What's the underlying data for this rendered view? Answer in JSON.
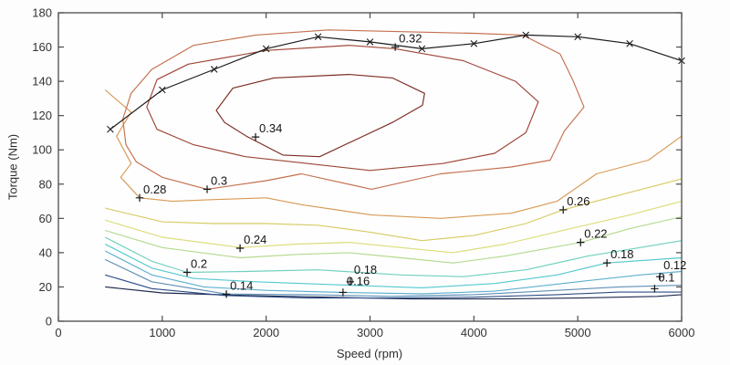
{
  "figure": {
    "background": "#fdfdfd",
    "plot_background": "#fefefe",
    "border_color": "#4a4a4a",
    "tick_text_color": "#333333",
    "contour_label_color": "#141414",
    "max_torque_color": "#1c1c1c"
  },
  "chart_data": {
    "type": "contour",
    "title": "",
    "xlabel": "Speed (rpm)",
    "ylabel": "Torque (Nm)",
    "xlim": [
      0,
      6000
    ],
    "ylim": [
      0,
      180
    ],
    "grid": false,
    "legend": "none",
    "xticks": {
      "values": [
        0,
        1000,
        2000,
        3000,
        4000,
        5000,
        6000
      ],
      "labels": [
        "0",
        "1000",
        "2000",
        "3000",
        "4000",
        "5000",
        "6000"
      ]
    },
    "yticks": {
      "values": [
        0,
        20,
        40,
        60,
        80,
        100,
        120,
        140,
        160,
        180
      ],
      "labels": [
        "0",
        "20",
        "40",
        "60",
        "80",
        "100",
        "120",
        "140",
        "160",
        "180"
      ]
    },
    "max_torque_curve": {
      "marker": "x",
      "points": [
        [
          500,
          112
        ],
        [
          1000,
          135
        ],
        [
          1500,
          147
        ],
        [
          2000,
          159
        ],
        [
          2500,
          166
        ],
        [
          3000,
          163
        ],
        [
          3500,
          159
        ],
        [
          4000,
          162
        ],
        [
          4500,
          167
        ],
        [
          5000,
          166
        ],
        [
          5500,
          162
        ],
        [
          6000,
          152
        ]
      ]
    },
    "contours": [
      {
        "level": 0.1,
        "color": "#1E2A4D",
        "closed": false,
        "points": [
          [
            450,
            20
          ],
          [
            1000,
            16.5
          ],
          [
            1800,
            15
          ],
          [
            2600,
            14
          ],
          [
            3400,
            13
          ],
          [
            4300,
            13
          ],
          [
            5000,
            13.5
          ],
          [
            5765,
            14.5
          ],
          [
            6000,
            15.5
          ]
        ]
      },
      {
        "level": 0.12,
        "color": "#2F4E87",
        "closed": false,
        "points": [
          [
            450,
            27
          ],
          [
            900,
            19
          ],
          [
            1600,
            15
          ],
          [
            2400,
            13.5
          ],
          [
            3200,
            13.5
          ],
          [
            4000,
            14
          ],
          [
            4800,
            15.5
          ],
          [
            5400,
            17
          ],
          [
            6000,
            17
          ]
        ]
      },
      {
        "level": 0.14,
        "color": "#5E8FB5",
        "closed": false,
        "points": [
          [
            450,
            36
          ],
          [
            900,
            23
          ],
          [
            1620,
            15.8
          ],
          [
            2400,
            15.5
          ],
          [
            3200,
            14.5
          ],
          [
            4000,
            15.5
          ],
          [
            4800,
            18
          ],
          [
            5400,
            20
          ],
          [
            6000,
            21
          ]
        ]
      },
      {
        "level": 0.16,
        "color": "#5FB0D0",
        "closed": false,
        "points": [
          [
            450,
            41
          ],
          [
            900,
            27
          ],
          [
            1400,
            20
          ],
          [
            2000,
            18
          ],
          [
            2740,
            16.8
          ],
          [
            3500,
            16
          ],
          [
            4200,
            17.5
          ],
          [
            5000,
            23
          ],
          [
            5600,
            27
          ],
          [
            6000,
            29
          ]
        ]
      },
      {
        "level": 0.18,
        "color": "#55C8D0",
        "closed": false,
        "points": [
          [
            450,
            45
          ],
          [
            900,
            31
          ],
          [
            1300,
            25
          ],
          [
            1900,
            23
          ],
          [
            2800,
            21
          ],
          [
            3500,
            19.5
          ],
          [
            4200,
            22
          ],
          [
            4800,
            27
          ],
          [
            5280,
            34
          ],
          [
            6000,
            37
          ]
        ]
      },
      {
        "level": 0.2,
        "color": "#6FD0BC",
        "closed": false,
        "points": [
          [
            450,
            49
          ],
          [
            900,
            35
          ],
          [
            1240,
            28.5
          ],
          [
            1800,
            29
          ],
          [
            2500,
            30
          ],
          [
            3300,
            27
          ],
          [
            3900,
            26
          ],
          [
            4500,
            30
          ],
          [
            5100,
            38
          ],
          [
            5600,
            43
          ],
          [
            6000,
            47
          ]
        ]
      },
      {
        "level": 0.22,
        "color": "#B5D98E",
        "closed": false,
        "points": [
          [
            450,
            53
          ],
          [
            1000,
            43
          ],
          [
            1750,
            37
          ],
          [
            2300,
            39
          ],
          [
            2800,
            40
          ],
          [
            3300,
            37
          ],
          [
            3800,
            34
          ],
          [
            4300,
            38
          ],
          [
            5030,
            46
          ],
          [
            5500,
            54
          ],
          [
            6000,
            61
          ]
        ]
      },
      {
        "level": 0.24,
        "color": "#DCDD7A",
        "closed": false,
        "points": [
          [
            450,
            59
          ],
          [
            1000,
            49
          ],
          [
            1750,
            43
          ],
          [
            2300,
            45
          ],
          [
            2800,
            46
          ],
          [
            3300,
            43
          ],
          [
            3800,
            40
          ],
          [
            4300,
            45
          ],
          [
            5000,
            55
          ],
          [
            5500,
            62
          ],
          [
            6000,
            70
          ]
        ]
      },
      {
        "level": 0.26,
        "color": "#D8CB66",
        "closed": false,
        "points": [
          [
            450,
            66
          ],
          [
            1000,
            58
          ],
          [
            1500,
            57
          ],
          [
            2000,
            57
          ],
          [
            2500,
            56
          ],
          [
            3000,
            52
          ],
          [
            3500,
            47
          ],
          [
            4000,
            50
          ],
          [
            4500,
            57
          ],
          [
            4860,
            65
          ],
          [
            5300,
            72
          ],
          [
            6000,
            83
          ]
        ]
      },
      {
        "level": 0.28,
        "color": "#D89A55",
        "closed": false,
        "points": [
          [
            450,
            135
          ],
          [
            700,
            122
          ],
          [
            560,
            108
          ],
          [
            700,
            92
          ],
          [
            600,
            84
          ],
          [
            782,
            72
          ],
          [
            1100,
            70
          ],
          [
            1500,
            71
          ],
          [
            2000,
            72
          ],
          [
            2340,
            68
          ],
          [
            3015,
            62
          ],
          [
            3680,
            60
          ],
          [
            4360,
            63
          ],
          [
            4800,
            70
          ],
          [
            5180,
            86
          ],
          [
            5680,
            94
          ],
          [
            6000,
            108
          ]
        ]
      },
      {
        "level": 0.3,
        "color": "#C4704F",
        "closed": true,
        "points": [
          [
            650,
            103
          ],
          [
            620,
            118
          ],
          [
            700,
            133
          ],
          [
            900,
            147
          ],
          [
            1300,
            161
          ],
          [
            1900,
            167
          ],
          [
            2600,
            170
          ],
          [
            3300,
            169
          ],
          [
            4000,
            168
          ],
          [
            4470,
            167
          ],
          [
            4830,
            156
          ],
          [
            4950,
            141
          ],
          [
            5060,
            125
          ],
          [
            4870,
            111
          ],
          [
            4735,
            94
          ],
          [
            4360,
            90
          ],
          [
            3680,
            86
          ],
          [
            3015,
            77
          ],
          [
            2340,
            86
          ],
          [
            2000,
            82
          ],
          [
            1430,
            77
          ],
          [
            1000,
            84
          ],
          [
            750,
            93
          ]
        ]
      },
      {
        "level": 0.32,
        "color": "#9E4638",
        "closed": true,
        "points": [
          [
            850,
            125
          ],
          [
            950,
            141
          ],
          [
            1250,
            150
          ],
          [
            2000,
            158
          ],
          [
            2800,
            161
          ],
          [
            3243,
            159
          ],
          [
            3900,
            152
          ],
          [
            4400,
            140
          ],
          [
            4620,
            128
          ],
          [
            4500,
            110
          ],
          [
            4200,
            98
          ],
          [
            3700,
            92
          ],
          [
            3000,
            88
          ],
          [
            2400,
            92
          ],
          [
            1800,
            96
          ],
          [
            1300,
            103
          ],
          [
            950,
            112
          ]
        ]
      },
      {
        "level": 0.34,
        "color": "#7C2B22",
        "closed": true,
        "points": [
          [
            1520,
            123
          ],
          [
            1680,
            136
          ],
          [
            2075,
            142
          ],
          [
            2800,
            144
          ],
          [
            3215,
            142
          ],
          [
            3525,
            133
          ],
          [
            3505,
            126
          ],
          [
            3215,
            116
          ],
          [
            2900,
            107
          ],
          [
            2515,
            96
          ],
          [
            2160,
            97
          ],
          [
            1810,
            108
          ],
          [
            1600,
            116
          ]
        ]
      }
    ],
    "contour_labels": [
      {
        "text": "0.32",
        "rpm": 3243,
        "nm": 160
      },
      {
        "text": "0.34",
        "rpm": 1898,
        "nm": 107.5
      },
      {
        "text": "0.3",
        "rpm": 1432,
        "nm": 77
      },
      {
        "text": "0.28",
        "rpm": 782,
        "nm": 72
      },
      {
        "text": "0.26",
        "rpm": 4860,
        "nm": 65
      },
      {
        "text": "0.24",
        "rpm": 1749,
        "nm": 42.6
      },
      {
        "text": "0.22",
        "rpm": 5027,
        "nm": 46
      },
      {
        "text": "0.2",
        "rpm": 1239,
        "nm": 28.5
      },
      {
        "text": "0.18",
        "rpm": 5281,
        "nm": 34
      },
      {
        "text": "0.18",
        "rpm": 2810,
        "nm": 23,
        "dy": -4
      },
      {
        "text": "0.16",
        "rpm": 2740,
        "nm": 16.8,
        "dy": -3
      },
      {
        "text": "0.14",
        "rpm": 1617,
        "nm": 15.8
      },
      {
        "text": "0.12",
        "rpm": 5790,
        "nm": 26,
        "dy": -3
      },
      {
        "text": "0.1",
        "rpm": 5740,
        "nm": 19,
        "dy": -3
      }
    ]
  }
}
